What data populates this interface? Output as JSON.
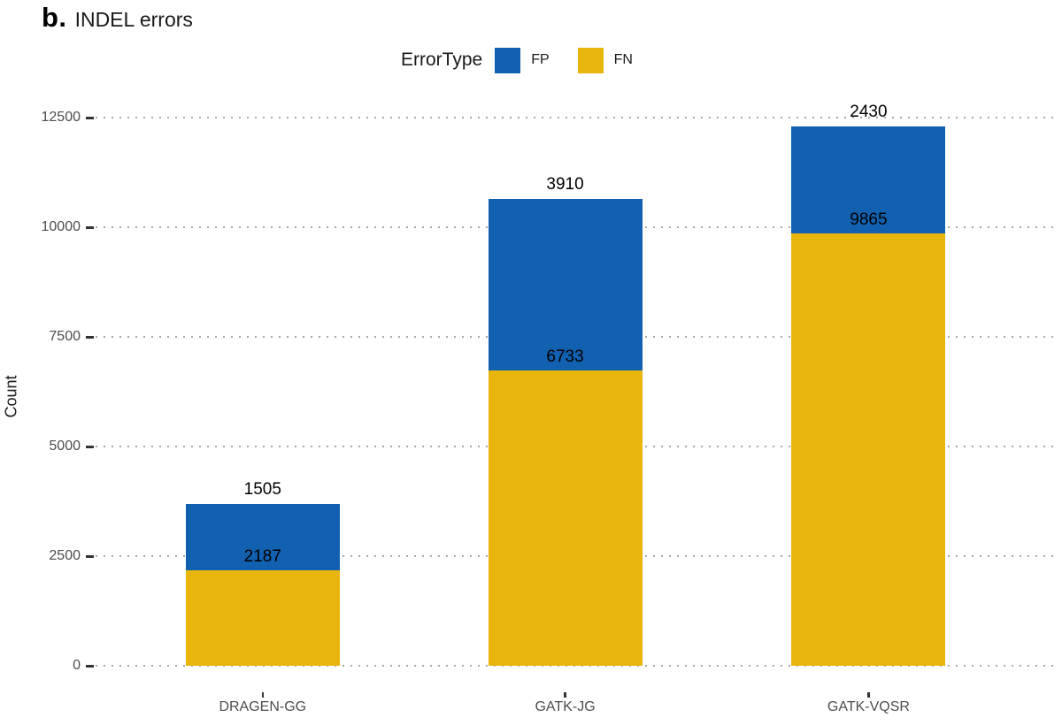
{
  "title": {
    "prefix": "b.",
    "text": "INDEL errors"
  },
  "legend": {
    "title": "ErrorType",
    "items": [
      {
        "label": "FP",
        "color": "#1161B0"
      },
      {
        "label": "FN",
        "color": "#E8B50C"
      }
    ]
  },
  "chart_data": {
    "type": "bar",
    "subtype": "stacked-vertical",
    "categories": [
      "DRAGEN-GG",
      "GATK-JG",
      "GATK-VQSR"
    ],
    "series": [
      {
        "name": "FN",
        "color": "#E8B50C",
        "values": [
          2187,
          6733,
          9865
        ]
      },
      {
        "name": "FP",
        "color": "#1161B0",
        "values": [
          1505,
          3910,
          2430
        ]
      }
    ],
    "title": "b. INDEL errors",
    "xlabel": "",
    "ylabel": "Count",
    "ylim": [
      0,
      12500
    ],
    "yticks": [
      0,
      2500,
      5000,
      7500,
      10000,
      12500
    ],
    "grid": "dotted-horizontal",
    "legend_position": "top",
    "legend_title": "ErrorType",
    "bar_value_labels": {
      "fp_above_bar": [
        1505,
        3910,
        2430
      ],
      "fn_above_segment_boundary": [
        2187,
        6733,
        9865
      ]
    }
  }
}
